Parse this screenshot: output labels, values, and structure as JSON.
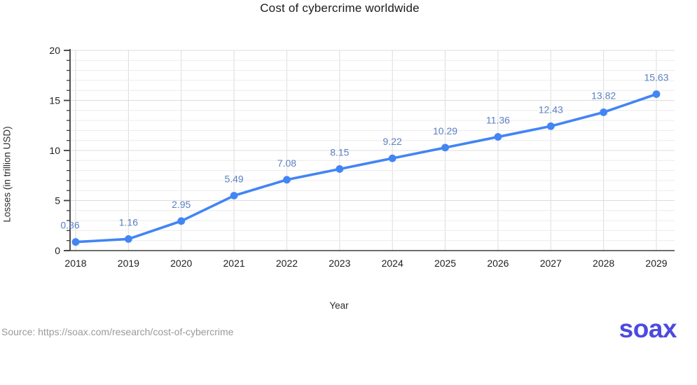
{
  "chart_data": {
    "type": "line",
    "title": "Cost of cybercrime worldwide",
    "xlabel": "Year",
    "ylabel": "Losses (in trillion USD)",
    "categories": [
      "2018",
      "2019",
      "2020",
      "2021",
      "2022",
      "2023",
      "2024",
      "2025",
      "2026",
      "2027",
      "2028",
      "2029"
    ],
    "series": [
      {
        "name": "Losses",
        "values": [
          0.86,
          1.16,
          2.95,
          5.49,
          7.08,
          8.15,
          9.22,
          10.29,
          11.36,
          12.43,
          13.82,
          15.63
        ]
      }
    ],
    "ylim": [
      0,
      20
    ],
    "y_major_ticks": [
      0,
      5,
      10,
      15,
      20
    ],
    "y_minor_step": 1,
    "grid": true,
    "legend": "none",
    "data_labels": true
  },
  "footer": {
    "source": "Source: https://soax.com/research/cost-of-cybercrime",
    "logo_text": "soax",
    "logo_color": "#4b4adf"
  },
  "colors": {
    "series_line": "#4285f4",
    "data_label": "#5b80c2",
    "axis": "#3d3d3d",
    "grid_major": "#dcdcdc",
    "grid_minor": "#ececec",
    "tick_label": "#1f1f1f",
    "source_text": "#9a9a9a"
  }
}
